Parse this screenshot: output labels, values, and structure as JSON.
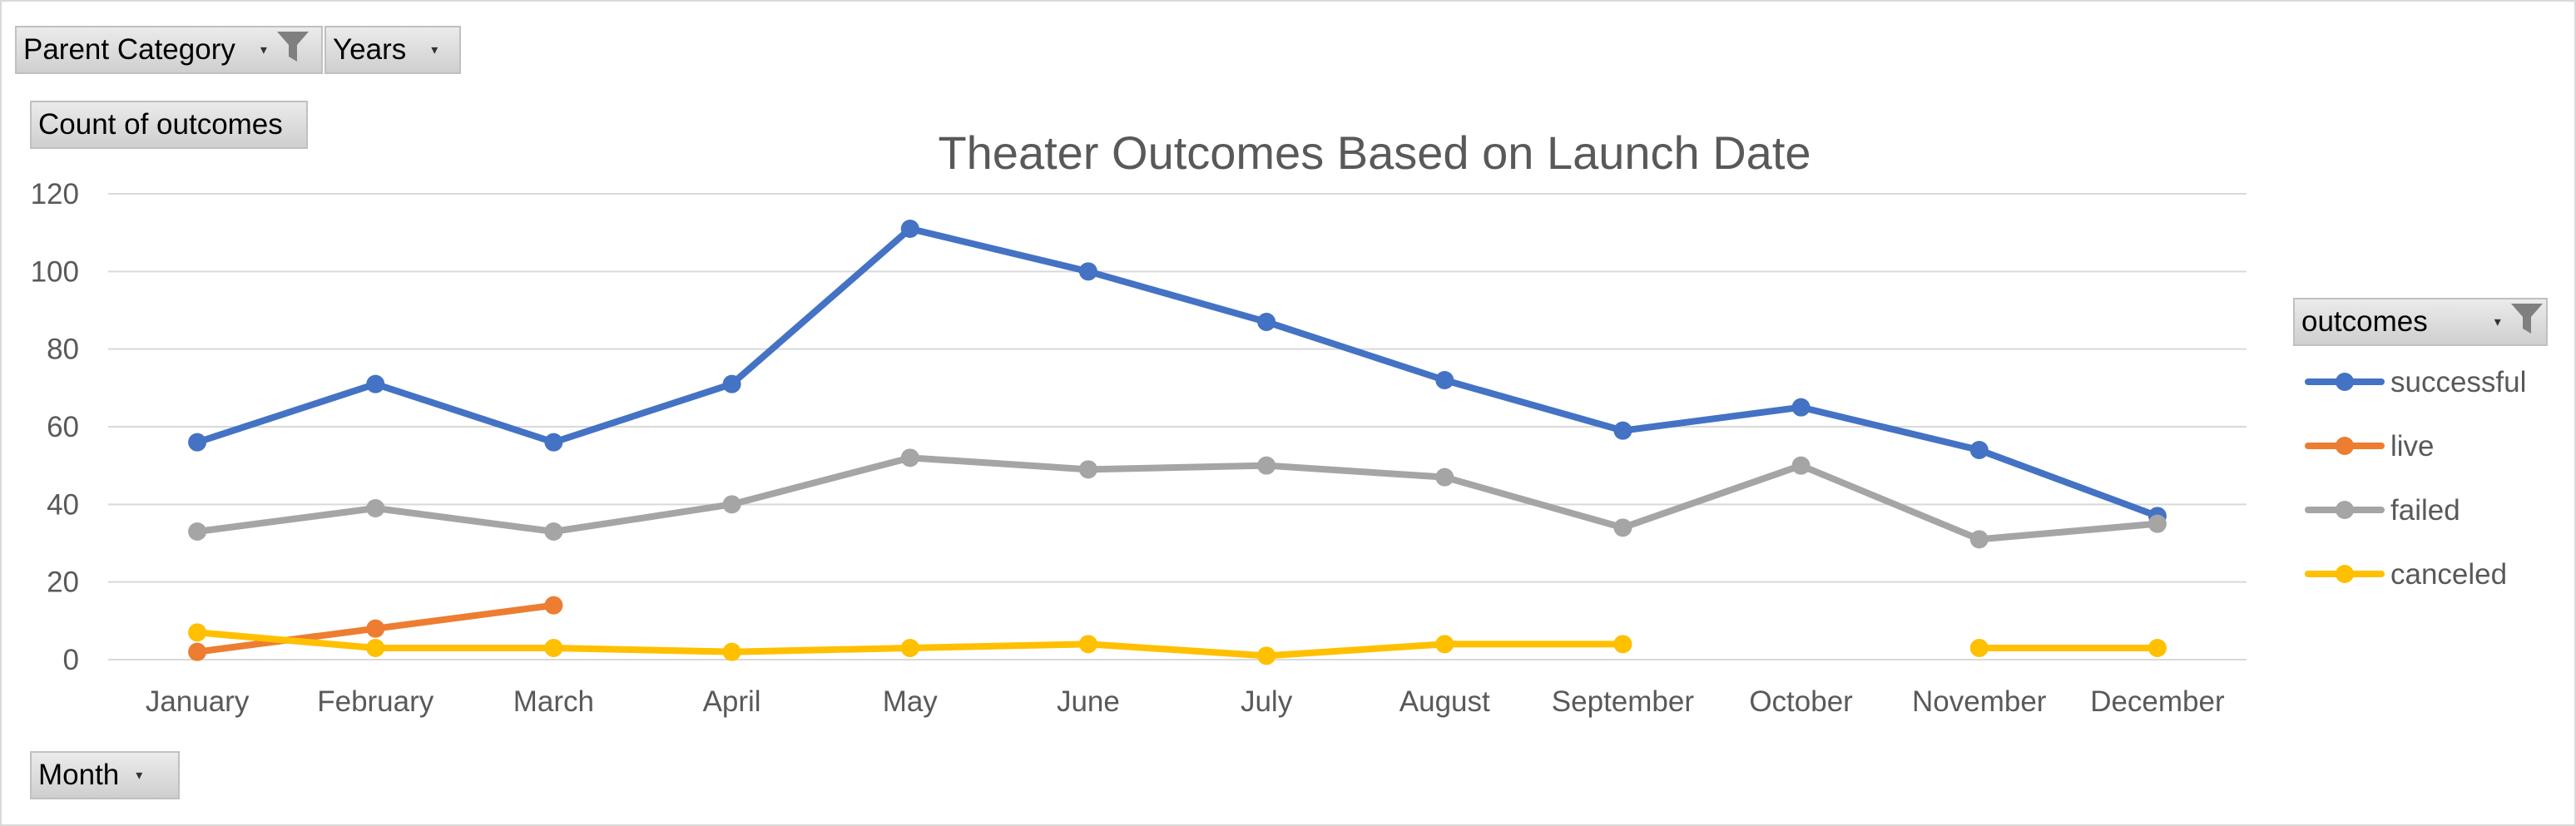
{
  "filters": {
    "parent_category": {
      "label": "Parent Category"
    },
    "years": {
      "label": "Years"
    },
    "values_field": {
      "label": "Count of outcomes"
    },
    "axis_field": {
      "label": "Month"
    },
    "legend_field": {
      "label": "outcomes"
    }
  },
  "chart_data": {
    "type": "line",
    "title": "Theater Outcomes Based on Launch Date",
    "xlabel": "",
    "ylabel": "",
    "categories": [
      "January",
      "February",
      "March",
      "April",
      "May",
      "June",
      "July",
      "August",
      "September",
      "October",
      "November",
      "December"
    ],
    "ylim": [
      0,
      120
    ],
    "yticks": [
      0,
      20,
      40,
      60,
      80,
      100,
      120
    ],
    "grid": true,
    "legend_position": "right",
    "series": [
      {
        "name": "successful",
        "color": "#4472c4",
        "values": [
          56,
          71,
          56,
          71,
          111,
          100,
          87,
          72,
          59,
          65,
          54,
          37
        ]
      },
      {
        "name": "live",
        "color": "#ed7d31",
        "values": [
          2,
          8,
          14,
          null,
          null,
          null,
          null,
          null,
          null,
          null,
          null,
          null
        ]
      },
      {
        "name": "failed",
        "color": "#a5a5a5",
        "values": [
          33,
          39,
          33,
          40,
          52,
          49,
          50,
          47,
          34,
          50,
          31,
          35
        ]
      },
      {
        "name": "canceled",
        "color": "#ffc000",
        "values": [
          7,
          3,
          3,
          2,
          3,
          4,
          1,
          4,
          4,
          null,
          3,
          3
        ]
      }
    ]
  }
}
